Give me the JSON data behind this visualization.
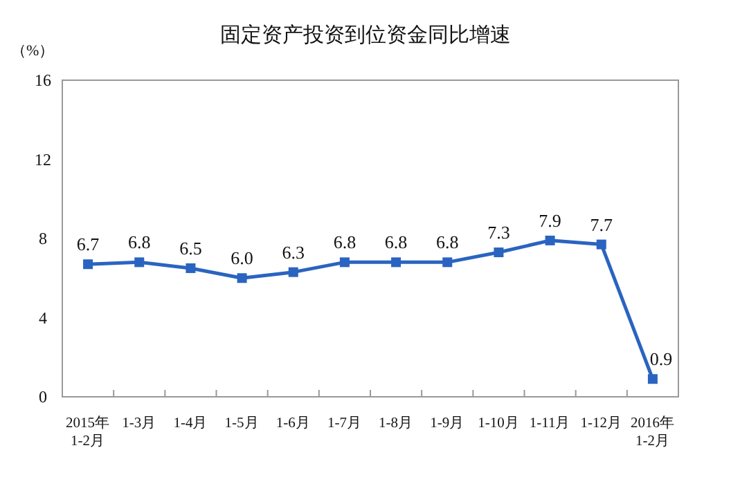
{
  "chart_data": {
    "type": "line",
    "title": "固定资产投资到位资金同比增速",
    "ylabel": "（%）",
    "categories": [
      "2015年\n1-2月",
      "1-3月",
      "1-4月",
      "1-5月",
      "1-6月",
      "1-7月",
      "1-8月",
      "1-9月",
      "1-10月",
      "1-11月",
      "1-12月",
      "2016年\n1-2月"
    ],
    "series": [
      {
        "color": "#2a64c0",
        "values": [
          6.7,
          6.8,
          6.5,
          6.0,
          6.3,
          6.8,
          6.8,
          6.8,
          7.3,
          7.9,
          7.7,
          0.9
        ],
        "value_labels": [
          "6.7",
          "6.8",
          "6.5",
          "6.0",
          "6.3",
          "6.8",
          "6.8",
          "6.8",
          "7.3",
          "7.9",
          "7.7",
          "0.9"
        ]
      }
    ],
    "ylim": [
      0,
      16
    ],
    "yticks": [
      0,
      4,
      8,
      12,
      16
    ],
    "marker": "square",
    "line_style": "solid"
  }
}
